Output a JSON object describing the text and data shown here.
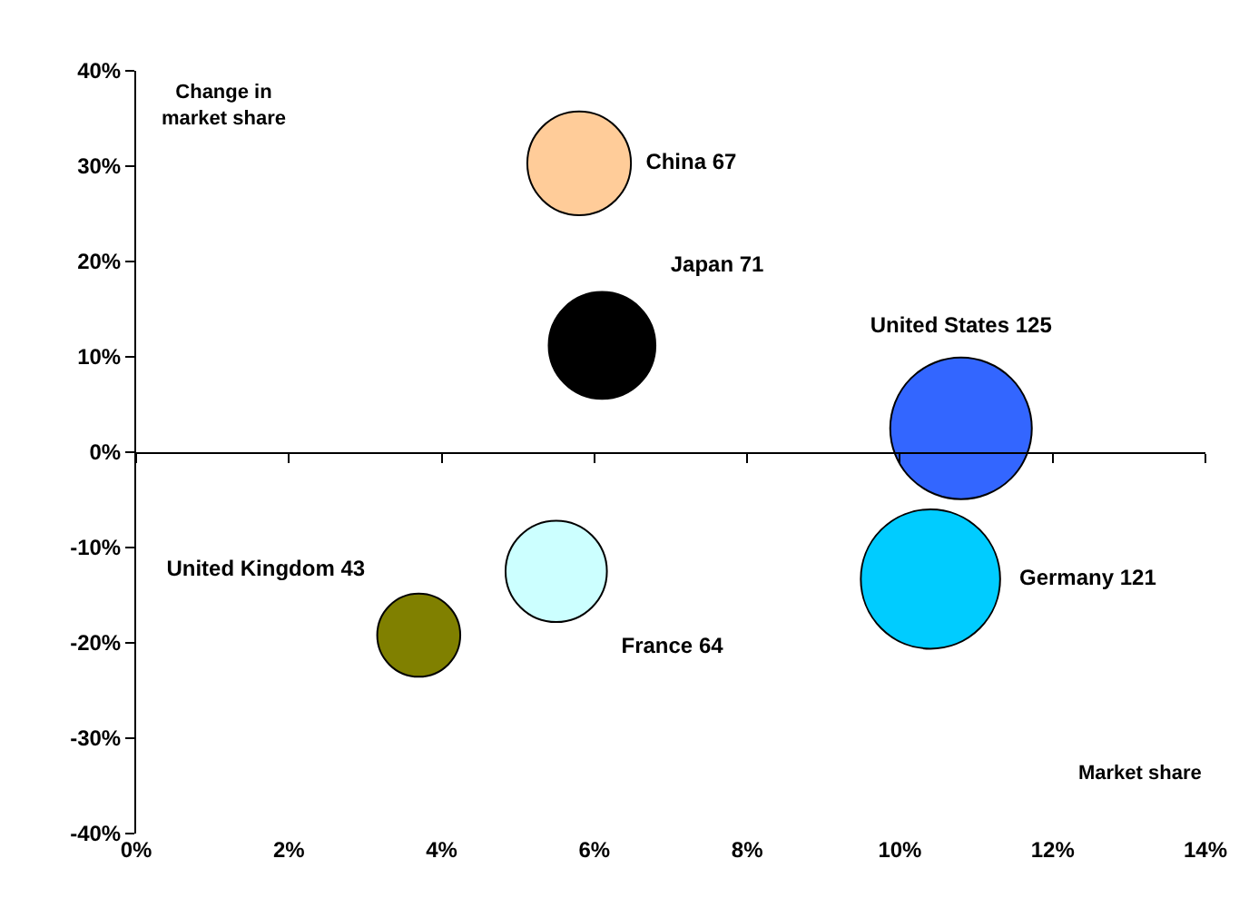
{
  "chart_data": {
    "type": "bubble",
    "xlabel": "Market share",
    "ylabel": "Change in market share",
    "xlim": [
      0,
      14
    ],
    "xticks": [
      {
        "value": 0,
        "label": "0%"
      },
      {
        "value": 2,
        "label": "2%"
      },
      {
        "value": 4,
        "label": "4%"
      },
      {
        "value": 6,
        "label": "6%"
      },
      {
        "value": 8,
        "label": "8%"
      },
      {
        "value": 10,
        "label": "10%"
      },
      {
        "value": 12,
        "label": "12%"
      },
      {
        "value": 14,
        "label": "14%"
      }
    ],
    "ylim": [
      -40,
      40
    ],
    "yticks": [
      {
        "value": -40,
        "label": "-40%"
      },
      {
        "value": -30,
        "label": "-30%"
      },
      {
        "value": -20,
        "label": "-20%"
      },
      {
        "value": -10,
        "label": "-10%"
      },
      {
        "value": 0,
        "label": "0%"
      },
      {
        "value": 10,
        "label": "10%"
      },
      {
        "value": 20,
        "label": "20%"
      },
      {
        "value": 30,
        "label": "30%"
      },
      {
        "value": 40,
        "label": "40%"
      }
    ],
    "legend": false,
    "series": [
      {
        "name": "China 67",
        "color": "#ffcc99",
        "x": [
          5.8
        ],
        "values": [
          30.3
        ],
        "sizes": [
          0.536
        ]
      },
      {
        "name": "Japan 71",
        "color": "#000000",
        "x": [
          6.1
        ],
        "values": [
          11.2
        ],
        "sizes": [
          0.568
        ]
      },
      {
        "name": "United States 125",
        "color": "#3366ff",
        "x": [
          10.8
        ],
        "values": [
          2.5
        ],
        "sizes": [
          1
        ]
      },
      {
        "name": "Germany 121",
        "color": "#00ccff",
        "x": [
          10.4
        ],
        "values": [
          -13.3
        ],
        "sizes": [
          0.968
        ]
      },
      {
        "name": "France 64",
        "color": "#ccffff",
        "x": [
          5.5
        ],
        "values": [
          -12.5
        ],
        "sizes": [
          0.512
        ]
      },
      {
        "name": "United Kingdom 43",
        "color": "#808000",
        "x": [
          3.7
        ],
        "values": [
          -19.2
        ],
        "sizes": [
          0.344
        ]
      }
    ]
  }
}
